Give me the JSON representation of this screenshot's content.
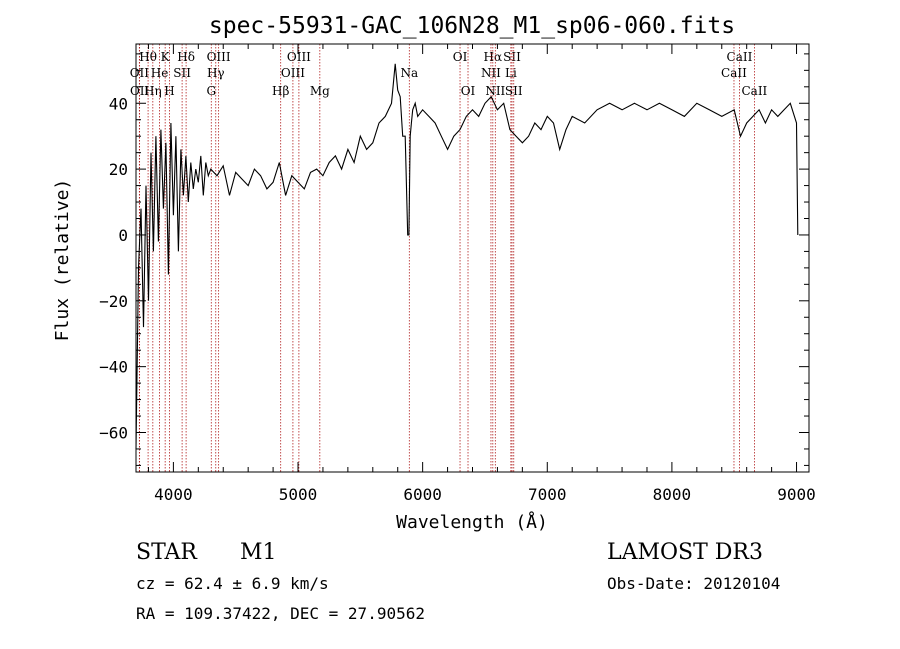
{
  "chart_data": {
    "type": "line",
    "title": "spec-55931-GAC_106N28_M1_sp06-060.fits",
    "xlabel": "Wavelength (Å)",
    "ylabel": "Flux (relative)",
    "xlim": [
      3700,
      9100
    ],
    "ylim": [
      -72,
      58
    ],
    "xticks": [
      4000,
      5000,
      6000,
      7000,
      8000,
      9000
    ],
    "yticks": [
      -60,
      -40,
      -20,
      0,
      20,
      40
    ],
    "grid": false,
    "line_color": "#000000",
    "marker_color": "#b22222",
    "series": [
      {
        "x": [
          3700,
          3720,
          3740,
          3760,
          3780,
          3800,
          3820,
          3840,
          3860,
          3880,
          3900,
          3920,
          3940,
          3960,
          3980,
          4000,
          4020,
          4040,
          4060,
          4080,
          4100,
          4120,
          4140,
          4160,
          4180,
          4200,
          4220,
          4240,
          4260,
          4280,
          4300,
          4350,
          4400,
          4450,
          4500,
          4550,
          4600,
          4650,
          4700,
          4750,
          4800,
          4850,
          4900,
          4950,
          5000,
          5050,
          5100,
          5150,
          5200,
          5250,
          5300,
          5350,
          5400,
          5450,
          5500,
          5550,
          5600,
          5650,
          5700,
          5750,
          5780,
          5800,
          5820,
          5840,
          5860,
          5880,
          5890,
          5900,
          5910,
          5920,
          5940,
          5960,
          6000,
          6050,
          6100,
          6150,
          6200,
          6250,
          6300,
          6350,
          6400,
          6450,
          6500,
          6550,
          6600,
          6650,
          6700,
          6750,
          6800,
          6850,
          6900,
          6950,
          7000,
          7050,
          7100,
          7150,
          7200,
          7300,
          7400,
          7500,
          7600,
          7700,
          7800,
          7900,
          8000,
          8100,
          8200,
          8300,
          8400,
          8500,
          8550,
          8600,
          8650,
          8700,
          8750,
          8800,
          8850,
          8900,
          8950,
          9000,
          9010
        ],
        "y": [
          -65,
          -10,
          8,
          -28,
          15,
          -20,
          25,
          -5,
          30,
          -2,
          32,
          8,
          28,
          -12,
          34,
          6,
          30,
          -5,
          26,
          12,
          24,
          10,
          22,
          14,
          20,
          16,
          24,
          12,
          22,
          18,
          20,
          18,
          21,
          12,
          19,
          17,
          15,
          20,
          18,
          14,
          16,
          22,
          12,
          18,
          16,
          14,
          19,
          20,
          18,
          22,
          24,
          20,
          26,
          22,
          30,
          26,
          28,
          34,
          36,
          40,
          52,
          44,
          42,
          30,
          30,
          0,
          0,
          30,
          34,
          38,
          40,
          36,
          38,
          36,
          34,
          30,
          26,
          30,
          32,
          36,
          38,
          36,
          40,
          42,
          38,
          40,
          32,
          30,
          28,
          30,
          34,
          32,
          36,
          34,
          26,
          32,
          36,
          34,
          38,
          40,
          38,
          40,
          38,
          40,
          38,
          36,
          40,
          38,
          36,
          38,
          30,
          34,
          36,
          38,
          34,
          38,
          36,
          38,
          40,
          34,
          0
        ]
      }
    ],
    "spectral_lines": [
      {
        "label": "Hθ",
        "x": 3797,
        "row": 1
      },
      {
        "label": "OII",
        "x": 3727,
        "row": 2
      },
      {
        "label": "OII",
        "x": 3729,
        "row": 3
      },
      {
        "label": "Hη",
        "x": 3835,
        "row": 3
      },
      {
        "label": "K",
        "x": 3934,
        "row": 1
      },
      {
        "label": "He",
        "x": 3889,
        "row": 2
      },
      {
        "label": "H",
        "x": 3969,
        "row": 3
      },
      {
        "label": "SII",
        "x": 4070,
        "row": 2
      },
      {
        "label": "Hδ",
        "x": 4102,
        "row": 1
      },
      {
        "label": "OIII",
        "x": 4363,
        "row": 1
      },
      {
        "label": "Hγ",
        "x": 4340,
        "row": 2
      },
      {
        "label": "G",
        "x": 4304,
        "row": 3
      },
      {
        "label": "OIII",
        "x": 5007,
        "row": 1
      },
      {
        "label": "OIII",
        "x": 4959,
        "row": 2
      },
      {
        "label": "Hβ",
        "x": 4861,
        "row": 3
      },
      {
        "label": "Mg",
        "x": 5175,
        "row": 3
      },
      {
        "label": "Na",
        "x": 5893,
        "row": 2
      },
      {
        "label": "OI",
        "x": 6300,
        "row": 1
      },
      {
        "label": "OI",
        "x": 6364,
        "row": 3
      },
      {
        "label": "Hα",
        "x": 6563,
        "row": 1
      },
      {
        "label": "SII",
        "x": 6717,
        "row": 1
      },
      {
        "label": "NII",
        "x": 6548,
        "row": 2
      },
      {
        "label": "Li",
        "x": 6708,
        "row": 2
      },
      {
        "label": "NII",
        "x": 6583,
        "row": 3
      },
      {
        "label": "SII",
        "x": 6731,
        "row": 3
      },
      {
        "label": "CaII",
        "x": 8542,
        "row": 1
      },
      {
        "label": "CaII",
        "x": 8498,
        "row": 2
      },
      {
        "label": "CaII",
        "x": 8662,
        "row": 3
      }
    ]
  },
  "info": {
    "object_class": "STAR",
    "subclass": "M1",
    "survey": "LAMOST DR3",
    "cz": "cz = 62.4 ± 6.9 km/s",
    "obs_date": "Obs-Date: 20120104",
    "coords": "RA = 109.37422, DEC =  27.90562"
  }
}
